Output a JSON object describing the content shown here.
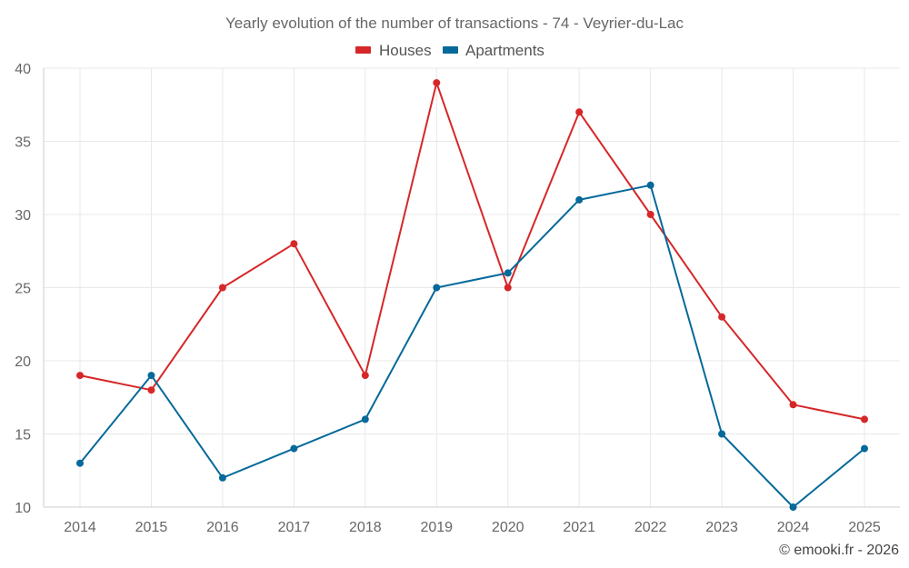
{
  "chart_data": {
    "type": "line",
    "title": "Yearly evolution of the number of transactions - 74 - Veyrier-du-Lac",
    "categories": [
      "2014",
      "2015",
      "2016",
      "2017",
      "2018",
      "2019",
      "2020",
      "2021",
      "2022",
      "2023",
      "2024",
      "2025"
    ],
    "series": [
      {
        "name": "Houses",
        "color": "#d62728",
        "values": [
          19,
          18,
          25,
          28,
          19,
          39,
          25,
          37,
          30,
          23,
          17,
          16
        ]
      },
      {
        "name": "Apartments",
        "color": "#05699a",
        "values": [
          13,
          19,
          12,
          14,
          16,
          25,
          26,
          31,
          32,
          15,
          10,
          14
        ]
      }
    ],
    "ylim": [
      10,
      40
    ],
    "yticks": [
      10,
      15,
      20,
      25,
      30,
      35,
      40
    ],
    "xlabel": "",
    "ylabel": "",
    "grid": true,
    "legend_position": "top-center"
  },
  "credit": "© emooki.fr - 2026"
}
